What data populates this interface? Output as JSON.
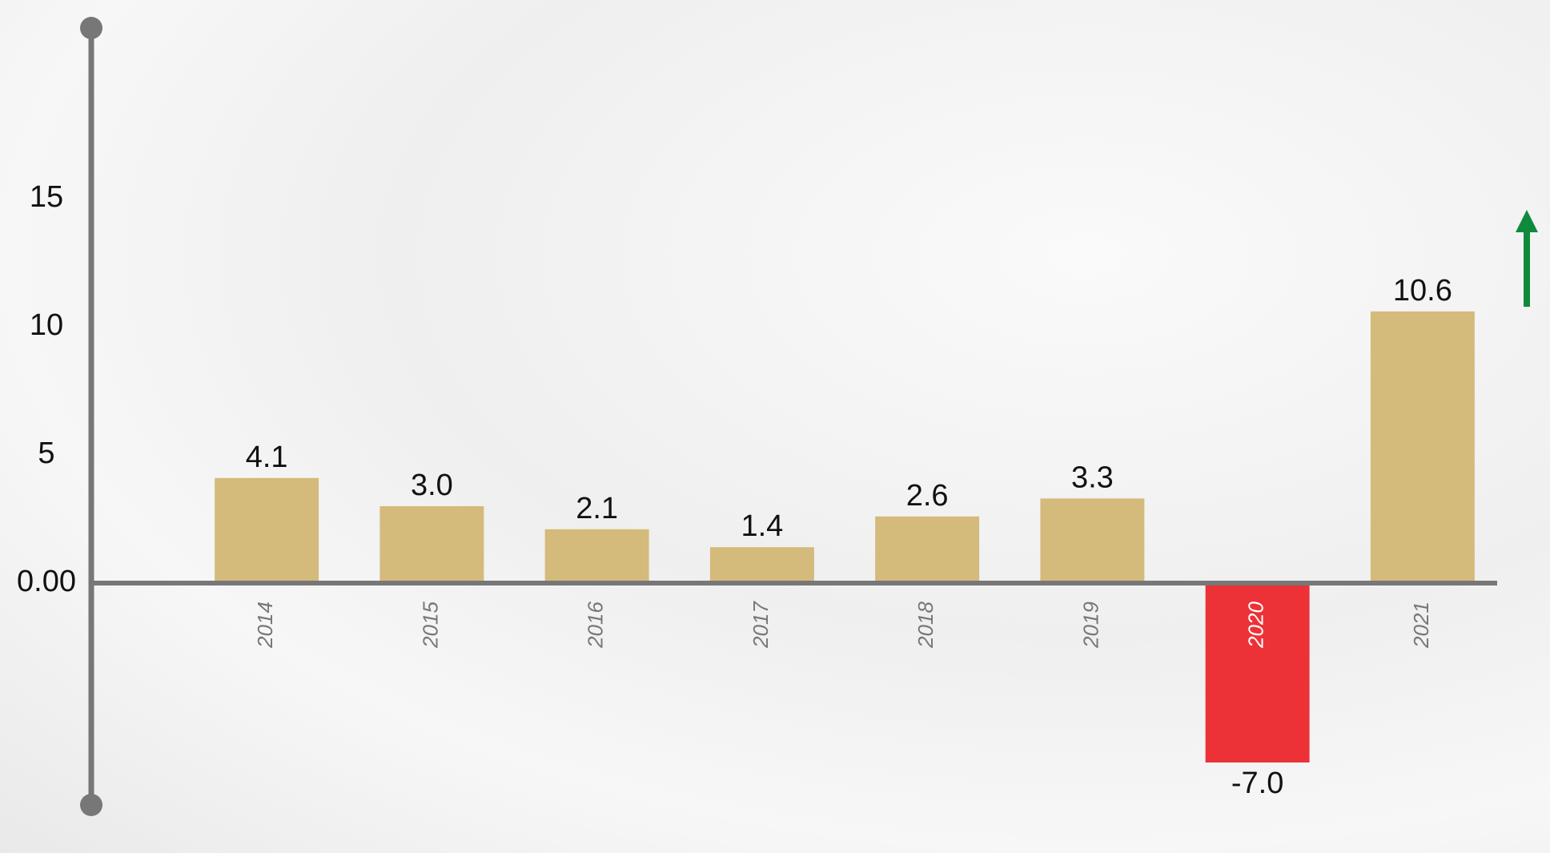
{
  "chart_data": {
    "type": "bar",
    "categories": [
      "2014",
      "2015",
      "2016",
      "2017",
      "2018",
      "2019",
      "2020",
      "2021"
    ],
    "values": [
      4.1,
      3.0,
      2.1,
      1.4,
      2.6,
      3.3,
      -7.0,
      10.6
    ],
    "value_labels": [
      "4.1",
      "3.0",
      "2.1",
      "1.4",
      "2.6",
      "3.3",
      "-7.0",
      "10.6"
    ],
    "colors": [
      "#d4ba7b",
      "#d4ba7b",
      "#d4ba7b",
      "#d4ba7b",
      "#d4ba7b",
      "#d4ba7b",
      "#ec3237",
      "#d4ba7b"
    ],
    "ylim": [
      -8.5,
      21.5
    ],
    "yticks": [
      {
        "value": 0,
        "label": "0.00"
      },
      5,
      10,
      15
    ],
    "grid": false
  }
}
